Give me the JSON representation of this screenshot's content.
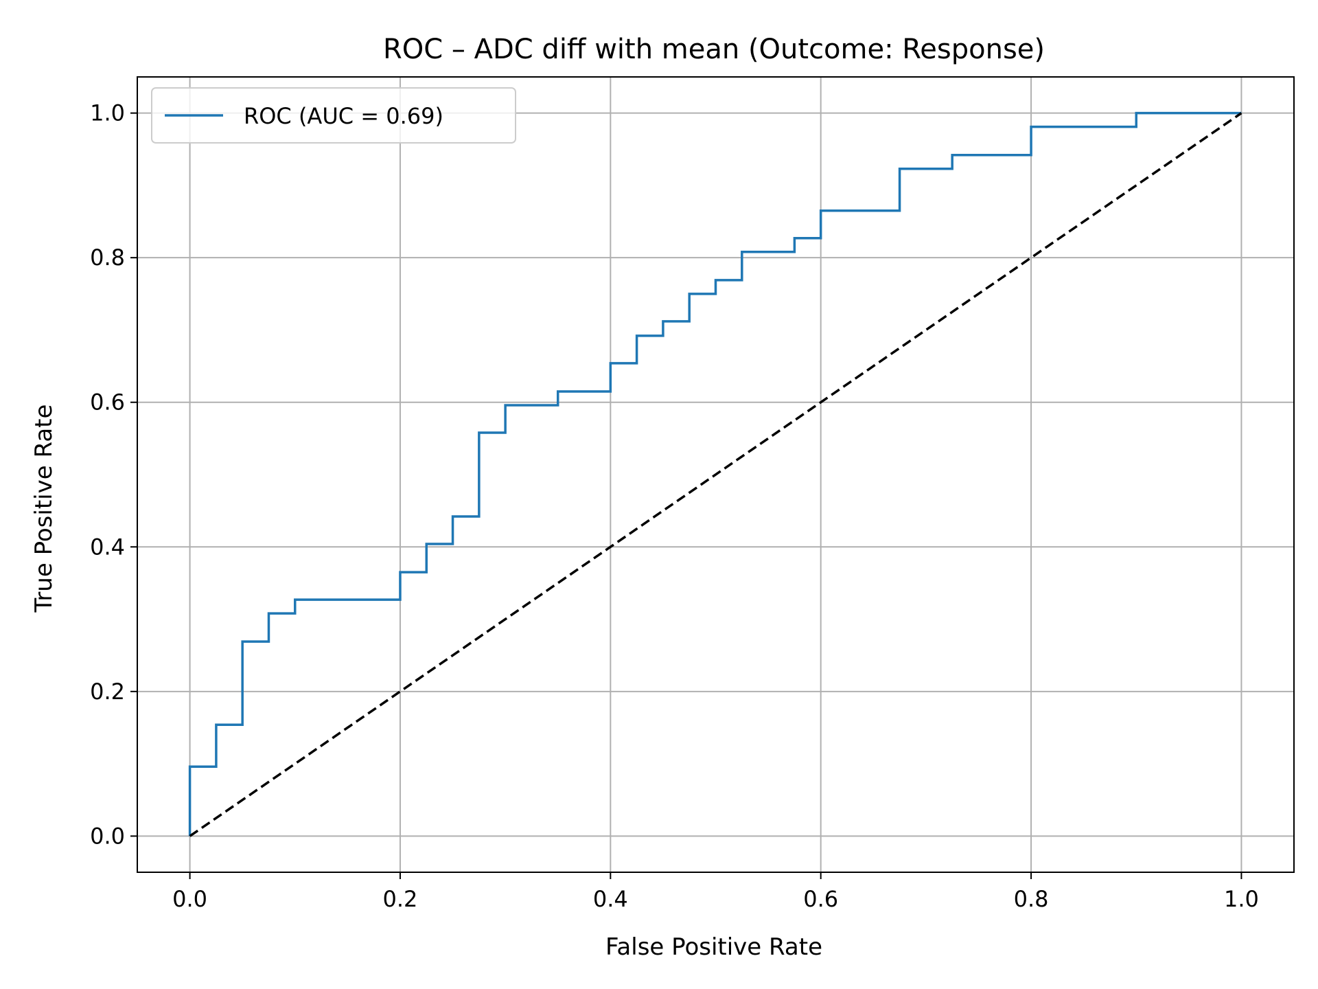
{
  "chart_data": {
    "type": "line",
    "title": "ROC – ADC diff with mean (Outcome: Response)",
    "xlabel": "False Positive Rate",
    "ylabel": "True Positive Rate",
    "xlim": [
      -0.05,
      1.05
    ],
    "ylim": [
      -0.05,
      1.05
    ],
    "x_ticks": [
      0.0,
      0.2,
      0.4,
      0.6,
      0.8,
      1.0
    ],
    "y_ticks": [
      0.0,
      0.2,
      0.4,
      0.6,
      0.8,
      1.0
    ],
    "x_tick_labels": [
      "0.0",
      "0.2",
      "0.4",
      "0.6",
      "0.8",
      "1.0"
    ],
    "y_tick_labels": [
      "0.0",
      "0.2",
      "0.4",
      "0.6",
      "0.8",
      "1.0"
    ],
    "grid": true,
    "legend": {
      "position": "top-left",
      "entries": [
        "ROC (AUC = 0.69)"
      ]
    },
    "series": [
      {
        "name": "ROC (AUC = 0.69)",
        "color": "#1f77b4",
        "style": "solid",
        "x": [
          0.0,
          0.0,
          0.025,
          0.025,
          0.05,
          0.05,
          0.075,
          0.075,
          0.1,
          0.1,
          0.2,
          0.2,
          0.225,
          0.225,
          0.25,
          0.25,
          0.275,
          0.275,
          0.3,
          0.3,
          0.35,
          0.35,
          0.4,
          0.4,
          0.425,
          0.425,
          0.45,
          0.45,
          0.475,
          0.475,
          0.5,
          0.5,
          0.525,
          0.525,
          0.575,
          0.575,
          0.6,
          0.6,
          0.675,
          0.675,
          0.725,
          0.725,
          0.8,
          0.8,
          0.9,
          0.9,
          1.0
        ],
        "y": [
          0.0,
          0.096,
          0.096,
          0.154,
          0.154,
          0.269,
          0.269,
          0.308,
          0.308,
          0.327,
          0.327,
          0.365,
          0.365,
          0.404,
          0.404,
          0.442,
          0.442,
          0.558,
          0.558,
          0.596,
          0.596,
          0.615,
          0.615,
          0.654,
          0.654,
          0.692,
          0.692,
          0.712,
          0.712,
          0.75,
          0.75,
          0.769,
          0.769,
          0.808,
          0.808,
          0.827,
          0.827,
          0.865,
          0.865,
          0.923,
          0.923,
          0.942,
          0.942,
          0.981,
          0.981,
          1.0,
          1.0
        ]
      },
      {
        "name": "",
        "color": "#000000",
        "style": "dashed",
        "x": [
          0.0,
          1.0
        ],
        "y": [
          0.0,
          1.0
        ]
      }
    ]
  }
}
